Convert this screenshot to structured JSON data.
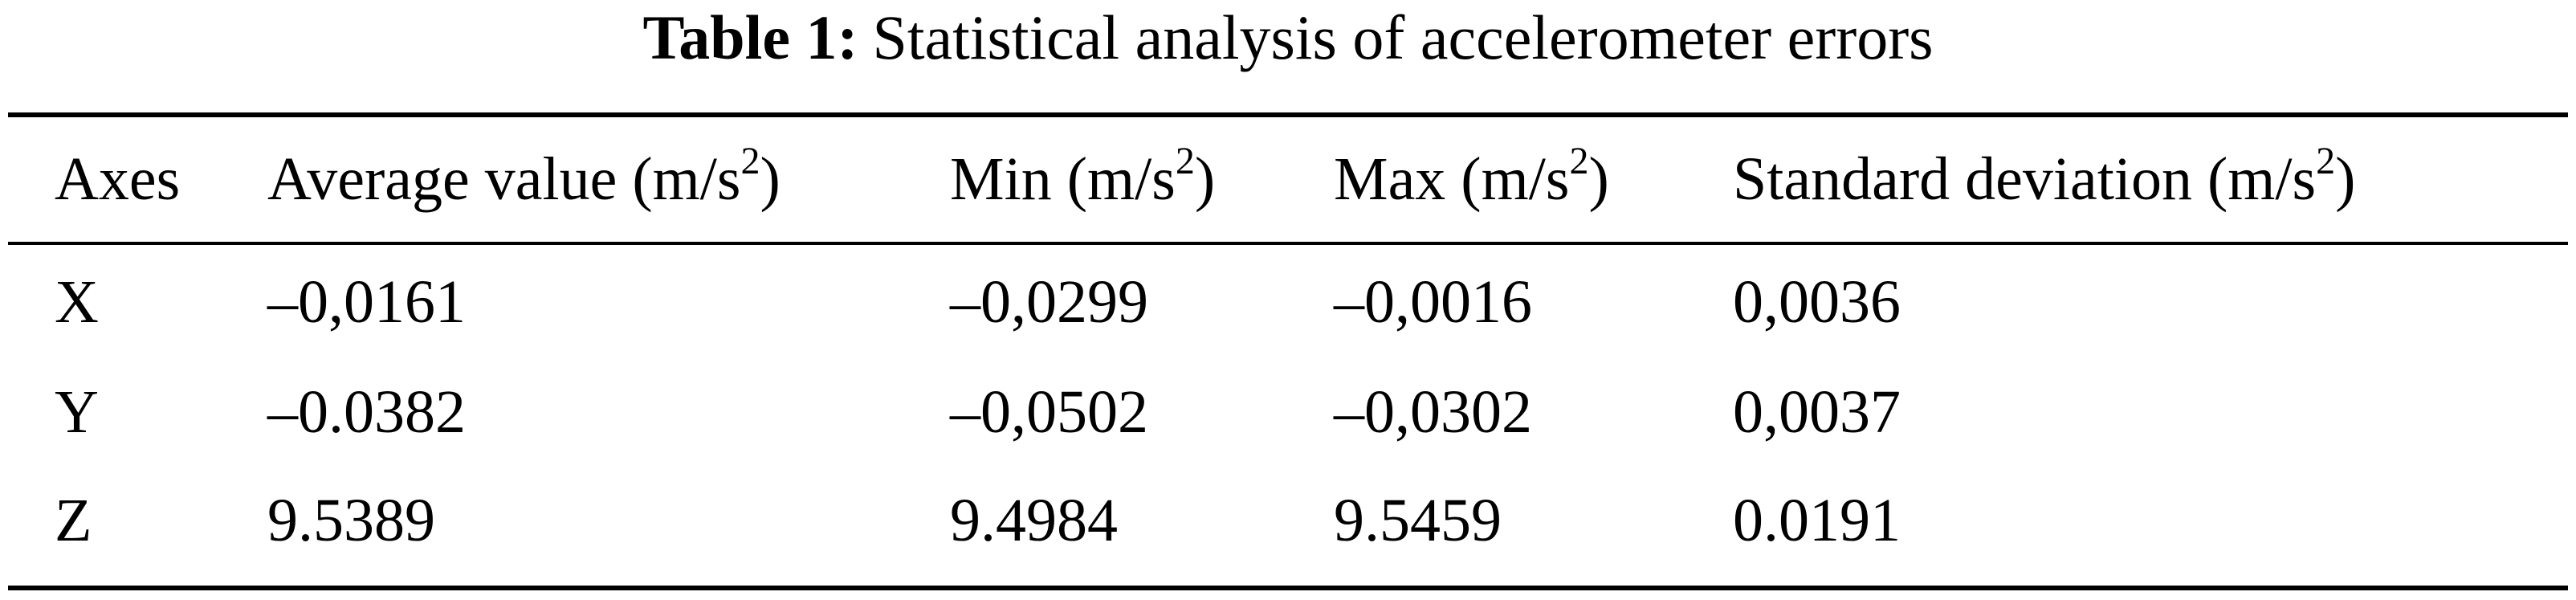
{
  "caption": {
    "label": "Table 1:",
    "text": "Statistical analysis of accelerometer errors"
  },
  "table": {
    "header": [
      {
        "text": "Axes"
      },
      {
        "text": "Average value (m/s",
        "sup": "2",
        "close": ")"
      },
      {
        "text": "Min (m/s",
        "sup": "2",
        "close": ")"
      },
      {
        "text": "Max (m/s",
        "sup": "2",
        "close": ")"
      },
      {
        "text": "Standard deviation (m/s",
        "sup": "2",
        "close": ")"
      }
    ],
    "rows": [
      [
        "X",
        "–0,0161",
        "–0,0299",
        "–0,0016",
        "0,0036"
      ],
      [
        "Y",
        "–0.0382",
        "–0,0502",
        "–0,0302",
        "0,0037"
      ],
      [
        "Z",
        "9.5389",
        "9.4984",
        "9.5459",
        "0.0191"
      ]
    ]
  }
}
